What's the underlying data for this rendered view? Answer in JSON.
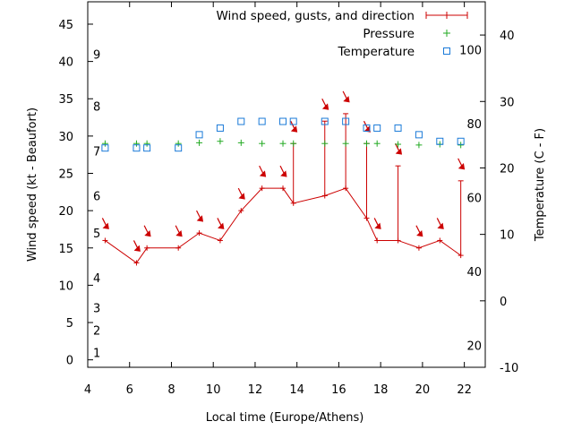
{
  "chart_data": {
    "type": "line",
    "xlabel": "Local time (Europe/Athens)",
    "ylabel": "Wind speed (kt - Beaufort)",
    "y2label": "Temperature (C - F)",
    "xlim": [
      4,
      23
    ],
    "ylim": [
      -1,
      48
    ],
    "y2lim": [
      -10,
      45
    ],
    "x_ticks": [
      "4",
      "6",
      "8",
      "10",
      "12",
      "14",
      "16",
      "18",
      "20",
      "22"
    ],
    "y_ticks": [
      "0",
      "5",
      "10",
      "15",
      "20",
      "25",
      "30",
      "35",
      "40",
      "45"
    ],
    "y2_ticks": [
      "-10",
      "0",
      "10",
      "20",
      "30",
      "40"
    ],
    "beaufort_labels": [
      "1",
      "2",
      "3",
      "4",
      "5",
      "6",
      "7",
      "8",
      "9"
    ],
    "fahrenheit_labels": [
      "20",
      "40",
      "60",
      "80",
      "100"
    ],
    "legend": [
      "Wind speed, gusts, and direction",
      "Pressure",
      "Temperature"
    ],
    "colors": {
      "wind": "#cc0000",
      "pressure": "#22aa22",
      "temperature": "#1a7ad8"
    },
    "series": [
      {
        "name": "Wind speed, gusts, and direction",
        "x": [
          4.83,
          6.33,
          6.83,
          8.33,
          9.33,
          10.33,
          11.33,
          12.33,
          13.33,
          13.83,
          15.33,
          16.33,
          17.33,
          17.83,
          18.83,
          19.83,
          20.83,
          21.83
        ],
        "y": [
          16,
          13,
          15,
          15,
          17,
          16,
          20,
          23,
          23,
          21,
          22,
          23,
          19,
          16,
          16,
          15,
          16,
          14
        ],
        "gusts": [
          null,
          null,
          null,
          null,
          null,
          null,
          null,
          null,
          null,
          29,
          32,
          33,
          29,
          null,
          26,
          null,
          null,
          24
        ]
      },
      {
        "name": "Pressure",
        "x": [
          4.83,
          6.33,
          6.83,
          8.33,
          9.33,
          10.33,
          11.33,
          12.33,
          13.33,
          13.83,
          15.33,
          16.33,
          17.33,
          17.83,
          18.83,
          19.83,
          20.83,
          21.83
        ],
        "y": [
          29.0,
          29.0,
          29.0,
          29.0,
          29.1,
          29.3,
          29.1,
          29.0,
          29.0,
          29.0,
          29.0,
          29.0,
          29.0,
          29.0,
          28.9,
          28.8,
          28.9,
          28.8
        ]
      },
      {
        "name": "Temperature",
        "x": [
          4.83,
          6.33,
          6.83,
          8.33,
          9.33,
          10.33,
          11.33,
          12.33,
          13.33,
          13.83,
          15.33,
          16.33,
          17.33,
          17.83,
          18.83,
          19.83,
          20.83,
          21.83
        ],
        "y": [
          23,
          23,
          23,
          23,
          25,
          26,
          27,
          27,
          27,
          27,
          27,
          27,
          26,
          26,
          26,
          25,
          24,
          24
        ]
      }
    ]
  }
}
